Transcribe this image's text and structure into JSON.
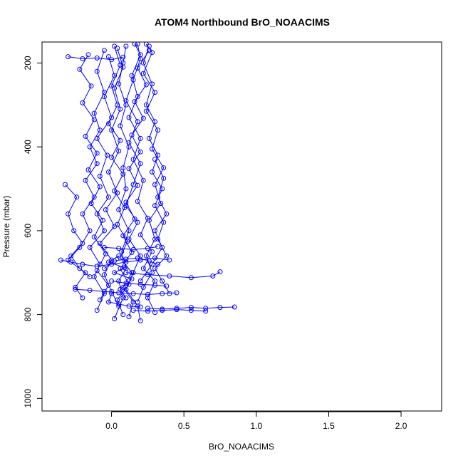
{
  "chart_data": {
    "type": "line",
    "title": "ATOM4 Northbound BrO_NOAACIMS",
    "xlabel": "BrO_NOAACIMS",
    "ylabel": "Pressure (mbar)",
    "xlim": [
      -0.48,
      2.28
    ],
    "ylim": [
      1030,
      150
    ],
    "y_reversed": true,
    "x_ticks": [
      "0.0",
      "0.5",
      "1.0",
      "1.5",
      "2.0"
    ],
    "x_tick_values": [
      0.0,
      0.5,
      1.0,
      1.5,
      2.0
    ],
    "y_ticks": [
      "200",
      "400",
      "600",
      "800",
      "1000"
    ],
    "y_tick_values": [
      200,
      400,
      600,
      800,
      1000
    ],
    "grid": false,
    "marker": "open-circle",
    "series_color": "#0000ff",
    "series": [
      {
        "points": [
          [
            0.02,
            810
          ],
          [
            0.08,
            760
          ],
          [
            0.05,
            720
          ],
          [
            0.1,
            690
          ],
          [
            0.07,
            650
          ],
          [
            0.12,
            600
          ],
          [
            0.05,
            550
          ],
          [
            0.1,
            500
          ],
          [
            0.08,
            450
          ],
          [
            0.12,
            400
          ],
          [
            0.06,
            350
          ],
          [
            0.1,
            300
          ],
          [
            0.05,
            250
          ],
          [
            0.08,
            200
          ],
          [
            0.1,
            160
          ]
        ]
      },
      {
        "points": [
          [
            0.2,
            815
          ],
          [
            0.18,
            780
          ],
          [
            0.1,
            740
          ],
          [
            0.15,
            700
          ],
          [
            0.2,
            660
          ],
          [
            0.12,
            620
          ],
          [
            0.18,
            580
          ],
          [
            0.1,
            540
          ],
          [
            0.15,
            490
          ],
          [
            0.2,
            440
          ],
          [
            0.12,
            390
          ],
          [
            0.18,
            340
          ],
          [
            0.1,
            290
          ],
          [
            0.15,
            240
          ],
          [
            0.2,
            190
          ],
          [
            0.18,
            155
          ]
        ]
      },
      {
        "points": [
          [
            -0.1,
            790
          ],
          [
            -0.05,
            750
          ],
          [
            -0.12,
            710
          ],
          [
            -0.08,
            680
          ],
          [
            -0.15,
            640
          ],
          [
            -0.05,
            600
          ],
          [
            -0.1,
            560
          ],
          [
            -0.02,
            520
          ],
          [
            -0.08,
            470
          ],
          [
            -0.03,
            420
          ],
          [
            -0.1,
            380
          ],
          [
            0.0,
            330
          ],
          [
            -0.05,
            280
          ],
          [
            0.02,
            230
          ],
          [
            -0.02,
            185
          ]
        ]
      },
      {
        "points": [
          [
            0.3,
            795
          ],
          [
            0.25,
            760
          ],
          [
            0.3,
            720
          ],
          [
            0.22,
            690
          ],
          [
            0.28,
            650
          ],
          [
            0.2,
            610
          ],
          [
            0.25,
            570
          ],
          [
            0.18,
            530
          ],
          [
            0.22,
            480
          ],
          [
            0.15,
            430
          ],
          [
            0.2,
            380
          ],
          [
            0.12,
            330
          ],
          [
            0.18,
            280
          ],
          [
            0.14,
            230
          ],
          [
            0.2,
            180
          ],
          [
            0.16,
            155
          ]
        ]
      },
      {
        "points": [
          [
            0.05,
            780
          ],
          [
            0.0,
            745
          ],
          [
            -0.05,
            705
          ],
          [
            0.0,
            670
          ],
          [
            -0.08,
            630
          ],
          [
            0.02,
            590
          ],
          [
            -0.04,
            550
          ],
          [
            0.04,
            510
          ],
          [
            -0.02,
            460
          ],
          [
            0.05,
            410
          ],
          [
            0.0,
            360
          ],
          [
            0.06,
            310
          ],
          [
            0.02,
            260
          ],
          [
            0.08,
            210
          ],
          [
            0.04,
            165
          ]
        ]
      },
      {
        "points": [
          [
            -0.2,
            760
          ],
          [
            -0.25,
            735
          ],
          [
            -0.18,
            700
          ],
          [
            -0.3,
            670
          ],
          [
            -0.22,
            640
          ],
          [
            -0.15,
            600
          ],
          [
            -0.2,
            560
          ],
          [
            -0.12,
            520
          ],
          [
            -0.18,
            480
          ],
          [
            -0.1,
            440
          ],
          [
            -0.15,
            400
          ],
          [
            -0.08,
            360
          ],
          [
            -0.12,
            320
          ],
          [
            -0.05,
            270
          ],
          [
            -0.1,
            220
          ],
          [
            -0.05,
            170
          ]
        ]
      },
      {
        "points": [
          [
            0.4,
            750
          ],
          [
            0.35,
            720
          ],
          [
            0.3,
            690
          ],
          [
            0.38,
            660
          ],
          [
            0.32,
            620
          ],
          [
            0.36,
            580
          ],
          [
            0.3,
            540
          ],
          [
            0.35,
            500
          ],
          [
            0.28,
            460
          ],
          [
            0.32,
            420
          ],
          [
            0.26,
            380
          ],
          [
            0.3,
            340
          ],
          [
            0.24,
            300
          ],
          [
            0.28,
            250
          ],
          [
            0.22,
            200
          ],
          [
            0.26,
            160
          ]
        ]
      },
      {
        "points": [
          [
            0.12,
            805
          ],
          [
            0.15,
            770
          ],
          [
            0.08,
            735
          ],
          [
            0.14,
            700
          ],
          [
            0.06,
            665
          ],
          [
            0.11,
            625
          ],
          [
            0.04,
            585
          ],
          [
            0.09,
            545
          ],
          [
            0.02,
            505
          ],
          [
            0.08,
            465
          ],
          [
            0.0,
            425
          ],
          [
            0.06,
            385
          ],
          [
            -0.02,
            345
          ],
          [
            0.04,
            300
          ],
          [
            0.0,
            255
          ],
          [
            0.06,
            205
          ],
          [
            0.02,
            160
          ]
        ]
      },
      {
        "points": [
          [
            -0.35,
            670
          ],
          [
            -0.28,
            675
          ],
          [
            -0.2,
            680
          ],
          [
            -0.1,
            685
          ],
          [
            0.0,
            680
          ],
          [
            0.1,
            675
          ],
          [
            0.2,
            670
          ],
          [
            0.3,
            665
          ],
          [
            0.4,
            670
          ]
        ]
      },
      {
        "points": [
          [
            -0.3,
            185
          ],
          [
            -0.2,
            190
          ],
          [
            -0.1,
            188
          ],
          [
            0.0,
            192
          ],
          [
            0.08,
            186
          ]
        ]
      },
      {
        "points": [
          [
            0.25,
            785
          ],
          [
            0.35,
            787
          ],
          [
            0.45,
            785
          ],
          [
            0.55,
            783
          ],
          [
            0.65,
            785
          ],
          [
            0.75,
            783
          ],
          [
            0.85,
            782
          ]
        ]
      },
      {
        "points": [
          [
            0.15,
            790
          ],
          [
            0.25,
            792
          ],
          [
            0.35,
            790
          ],
          [
            0.45,
            788
          ],
          [
            0.55,
            790
          ],
          [
            0.65,
            792
          ]
        ]
      },
      {
        "points": [
          [
            -0.25,
            740
          ],
          [
            -0.15,
            742
          ],
          [
            -0.05,
            745
          ],
          [
            0.05,
            748
          ],
          [
            0.15,
            750
          ],
          [
            0.25,
            752
          ],
          [
            0.35,
            750
          ],
          [
            0.45,
            748
          ]
        ]
      },
      {
        "points": [
          [
            0.1,
            700
          ],
          [
            0.25,
            705
          ],
          [
            0.4,
            708
          ],
          [
            0.55,
            712
          ],
          [
            0.7,
            708
          ],
          [
            0.75,
            698
          ]
        ]
      },
      {
        "points": [
          [
            -0.05,
            640
          ],
          [
            0.05,
            642
          ],
          [
            0.15,
            645
          ],
          [
            0.25,
            642
          ],
          [
            0.32,
            638
          ]
        ]
      },
      {
        "points": [
          [
            0.0,
            720
          ],
          [
            0.1,
            725
          ],
          [
            0.2,
            728
          ],
          [
            0.3,
            730
          ],
          [
            0.38,
            732
          ]
        ]
      },
      {
        "points": [
          [
            0.18,
            770
          ],
          [
            0.22,
            735
          ],
          [
            0.28,
            700
          ],
          [
            0.24,
            660
          ],
          [
            0.3,
            620
          ],
          [
            0.26,
            575
          ],
          [
            0.34,
            535
          ],
          [
            0.3,
            490
          ],
          [
            0.36,
            450
          ],
          [
            0.28,
            405
          ],
          [
            0.32,
            360
          ],
          [
            0.24,
            315
          ],
          [
            0.3,
            270
          ],
          [
            0.22,
            225
          ],
          [
            0.28,
            175
          ],
          [
            0.24,
            155
          ]
        ]
      },
      {
        "points": [
          [
            -0.08,
            765
          ],
          [
            -0.02,
            730
          ],
          [
            -0.1,
            695
          ],
          [
            -0.04,
            655
          ],
          [
            -0.12,
            615
          ],
          [
            -0.06,
            575
          ],
          [
            -0.14,
            535
          ],
          [
            -0.08,
            495
          ],
          [
            -0.16,
            455
          ],
          [
            -0.1,
            415
          ],
          [
            -0.18,
            375
          ],
          [
            -0.12,
            335
          ],
          [
            -0.2,
            295
          ],
          [
            -0.14,
            255
          ],
          [
            -0.22,
            215
          ],
          [
            -0.16,
            180
          ]
        ]
      },
      {
        "points": [
          [
            0.08,
            800
          ],
          [
            0.04,
            765
          ],
          [
            0.12,
            728
          ],
          [
            0.06,
            690
          ],
          [
            0.14,
            652
          ],
          [
            0.08,
            612
          ],
          [
            0.16,
            572
          ],
          [
            0.1,
            532
          ],
          [
            0.18,
            492
          ],
          [
            0.12,
            452
          ],
          [
            0.2,
            412
          ],
          [
            0.14,
            372
          ],
          [
            0.22,
            332
          ],
          [
            0.16,
            292
          ],
          [
            0.24,
            252
          ],
          [
            0.18,
            212
          ],
          [
            0.26,
            170
          ]
        ]
      },
      {
        "points": [
          [
            -0.15,
            710
          ],
          [
            -0.22,
            690
          ],
          [
            -0.28,
            660
          ],
          [
            -0.2,
            630
          ],
          [
            -0.26,
            600
          ],
          [
            -0.3,
            560
          ],
          [
            -0.24,
            520
          ],
          [
            -0.32,
            490
          ]
        ]
      },
      {
        "points": [
          [
            0.2,
            720
          ],
          [
            0.28,
            680
          ],
          [
            0.35,
            640
          ],
          [
            0.3,
            600
          ],
          [
            0.38,
            560
          ],
          [
            0.32,
            520
          ],
          [
            0.36,
            475
          ],
          [
            0.3,
            430
          ]
        ]
      },
      {
        "points": [
          [
            -0.05,
            690
          ],
          [
            0.02,
            672
          ],
          [
            0.1,
            668
          ],
          [
            0.18,
            665
          ],
          [
            0.26,
            672
          ],
          [
            0.32,
            680
          ]
        ]
      },
      {
        "points": [
          [
            0.0,
            750
          ],
          [
            -0.02,
            770
          ],
          [
            0.05,
            775
          ],
          [
            0.12,
            780
          ],
          [
            0.2,
            782
          ]
        ]
      },
      {
        "points": [
          [
            0.1,
            760
          ],
          [
            0.06,
            740
          ],
          [
            0.14,
            715
          ],
          [
            0.02,
            700
          ],
          [
            0.09,
            688
          ],
          [
            -0.02,
            675
          ],
          [
            0.05,
            660
          ]
        ]
      }
    ]
  }
}
